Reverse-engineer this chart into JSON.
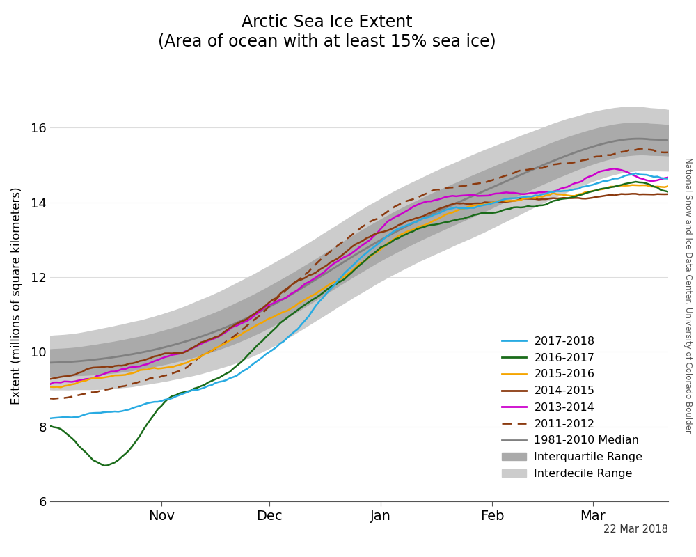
{
  "title_line1": "Arctic Sea Ice Extent",
  "title_line2": "(Area of ocean with at least 15% sea ice)",
  "ylabel": "Extent (millions of square kilometers)",
  "xlabel_date_label": "22 Mar 2018",
  "watermark": "National Snow and Ice Data Center, University of Colorado Boulder",
  "ylim": [
    6,
    17
  ],
  "yticks": [
    6,
    8,
    10,
    12,
    14,
    16
  ],
  "colors": {
    "2017-2018": "#29ABE2",
    "2016-2017": "#1A6B1A",
    "2015-2016": "#F5A500",
    "2014-2015": "#8B3A0F",
    "2013-2014": "#CC00CC",
    "2011-2012": "#8B3A0F",
    "median": "#808080",
    "interquartile": "#AAAAAA",
    "interdecile": "#CCCCCC"
  },
  "background_color": "#FFFFFF"
}
